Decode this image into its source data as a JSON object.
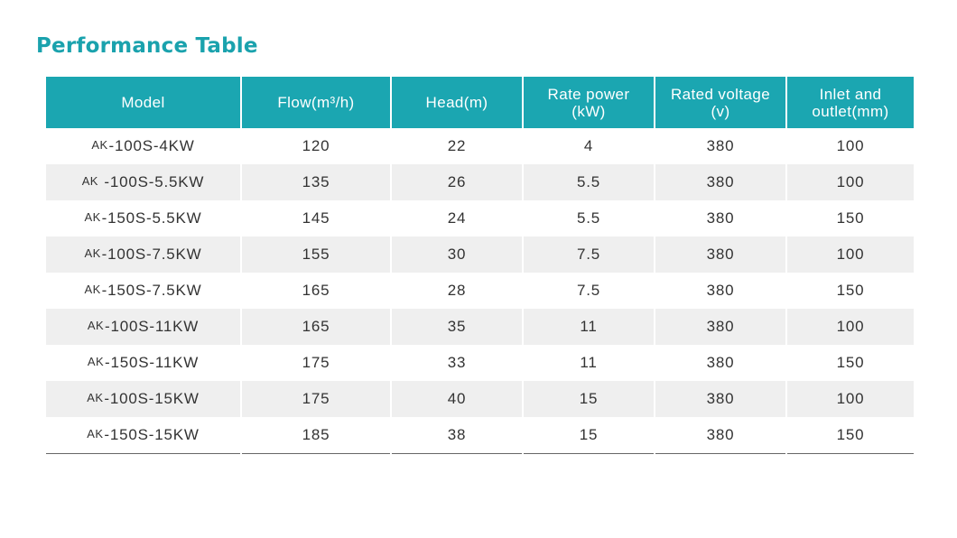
{
  "title": "Performance Table",
  "colors": {
    "accent": "#1aa2ad",
    "header_bg": "#1ba6b1",
    "row_alt_bg": "#efefef"
  },
  "table": {
    "headers": [
      [
        "Model"
      ],
      [
        "Flow(m³/h)"
      ],
      [
        "Head(m)"
      ],
      [
        "Rate power",
        "(kW)"
      ],
      [
        "Rated  voltage",
        "(v)"
      ],
      [
        "Inlet and",
        "outlet(mm)"
      ]
    ],
    "rows": [
      {
        "prefix": "AK",
        "model": "-100S-4KW",
        "flow": "120",
        "head": "22",
        "power": "4",
        "voltage": "380",
        "outlet": "100"
      },
      {
        "prefix": "AK",
        "model": " -100S-5.5KW",
        "flow": "135",
        "head": "26",
        "power": "5.5",
        "voltage": "380",
        "outlet": "100"
      },
      {
        "prefix": "AK",
        "model": "-150S-5.5KW",
        "flow": "145",
        "head": "24",
        "power": "5.5",
        "voltage": "380",
        "outlet": "150"
      },
      {
        "prefix": "AK",
        "model": "-100S-7.5KW",
        "flow": "155",
        "head": "30",
        "power": "7.5",
        "voltage": "380",
        "outlet": "100"
      },
      {
        "prefix": "AK",
        "model": "-150S-7.5KW",
        "flow": "165",
        "head": "28",
        "power": "7.5",
        "voltage": "380",
        "outlet": "150"
      },
      {
        "prefix": "AK",
        "model": "-100S-11KW",
        "flow": "165",
        "head": "35",
        "power": "11",
        "voltage": "380",
        "outlet": "100"
      },
      {
        "prefix": "AK",
        "model": "-150S-11KW",
        "flow": "175",
        "head": "33",
        "power": "11",
        "voltage": "380",
        "outlet": "150"
      },
      {
        "prefix": "AK",
        "model": "-100S-15KW",
        "flow": "175",
        "head": "40",
        "power": "15",
        "voltage": "380",
        "outlet": "100"
      },
      {
        "prefix": "AK",
        "model": "-150S-15KW",
        "flow": "185",
        "head": "38",
        "power": "15",
        "voltage": "380",
        "outlet": "150"
      }
    ]
  }
}
